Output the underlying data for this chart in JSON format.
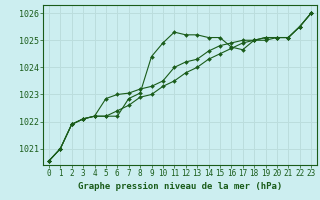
{
  "title": "Graphe pression niveau de la mer (hPa)",
  "background_color": "#cceef0",
  "grid_color": "#bbdddd",
  "line_color": "#1a5c1a",
  "xlim": [
    -0.5,
    23.5
  ],
  "ylim": [
    1020.4,
    1026.3
  ],
  "yticks": [
    1021,
    1022,
    1023,
    1024,
    1025,
    1026
  ],
  "xticks": [
    0,
    1,
    2,
    3,
    4,
    5,
    6,
    7,
    8,
    9,
    10,
    11,
    12,
    13,
    14,
    15,
    16,
    17,
    18,
    19,
    20,
    21,
    22,
    23
  ],
  "series1": [
    1020.55,
    1021.0,
    1021.9,
    1022.1,
    1022.2,
    1022.2,
    1022.2,
    1022.85,
    1023.05,
    1024.4,
    1024.9,
    1025.3,
    1025.2,
    1025.2,
    1025.1,
    1025.1,
    1024.75,
    1024.65,
    1025.0,
    1025.0,
    1025.1,
    1025.1,
    1025.5,
    1026.0
  ],
  "series2": [
    1020.55,
    1021.0,
    1021.9,
    1022.1,
    1022.2,
    1022.85,
    1023.0,
    1023.05,
    1023.2,
    1023.3,
    1023.5,
    1024.0,
    1024.2,
    1024.3,
    1024.6,
    1024.8,
    1024.9,
    1025.0,
    1025.0,
    1025.1,
    1025.1,
    1025.1,
    1025.5,
    1026.0
  ],
  "series3": [
    1020.55,
    1021.0,
    1021.9,
    1022.1,
    1022.2,
    1022.2,
    1022.4,
    1022.6,
    1022.9,
    1023.0,
    1023.3,
    1023.5,
    1023.8,
    1024.0,
    1024.3,
    1024.5,
    1024.7,
    1024.9,
    1025.0,
    1025.1,
    1025.1,
    1025.1,
    1025.5,
    1026.0
  ]
}
